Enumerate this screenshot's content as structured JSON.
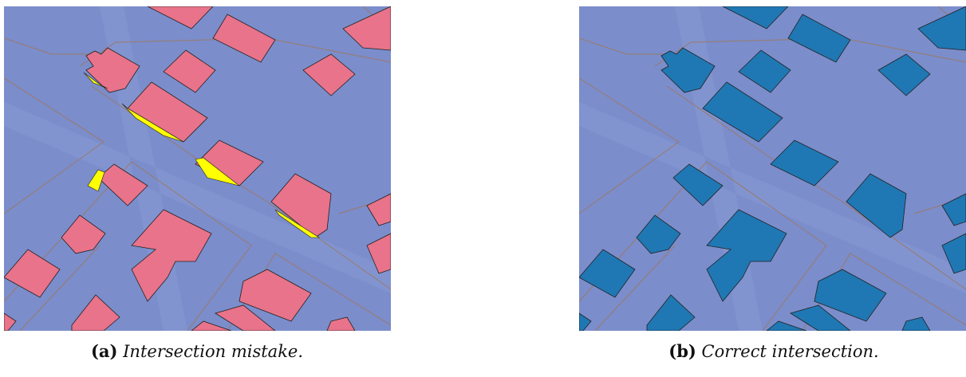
{
  "figures": [
    {
      "label": "(a)",
      "caption": "Intersection mistake."
    },
    {
      "label": "(b)",
      "caption": "Correct intersection."
    }
  ]
}
